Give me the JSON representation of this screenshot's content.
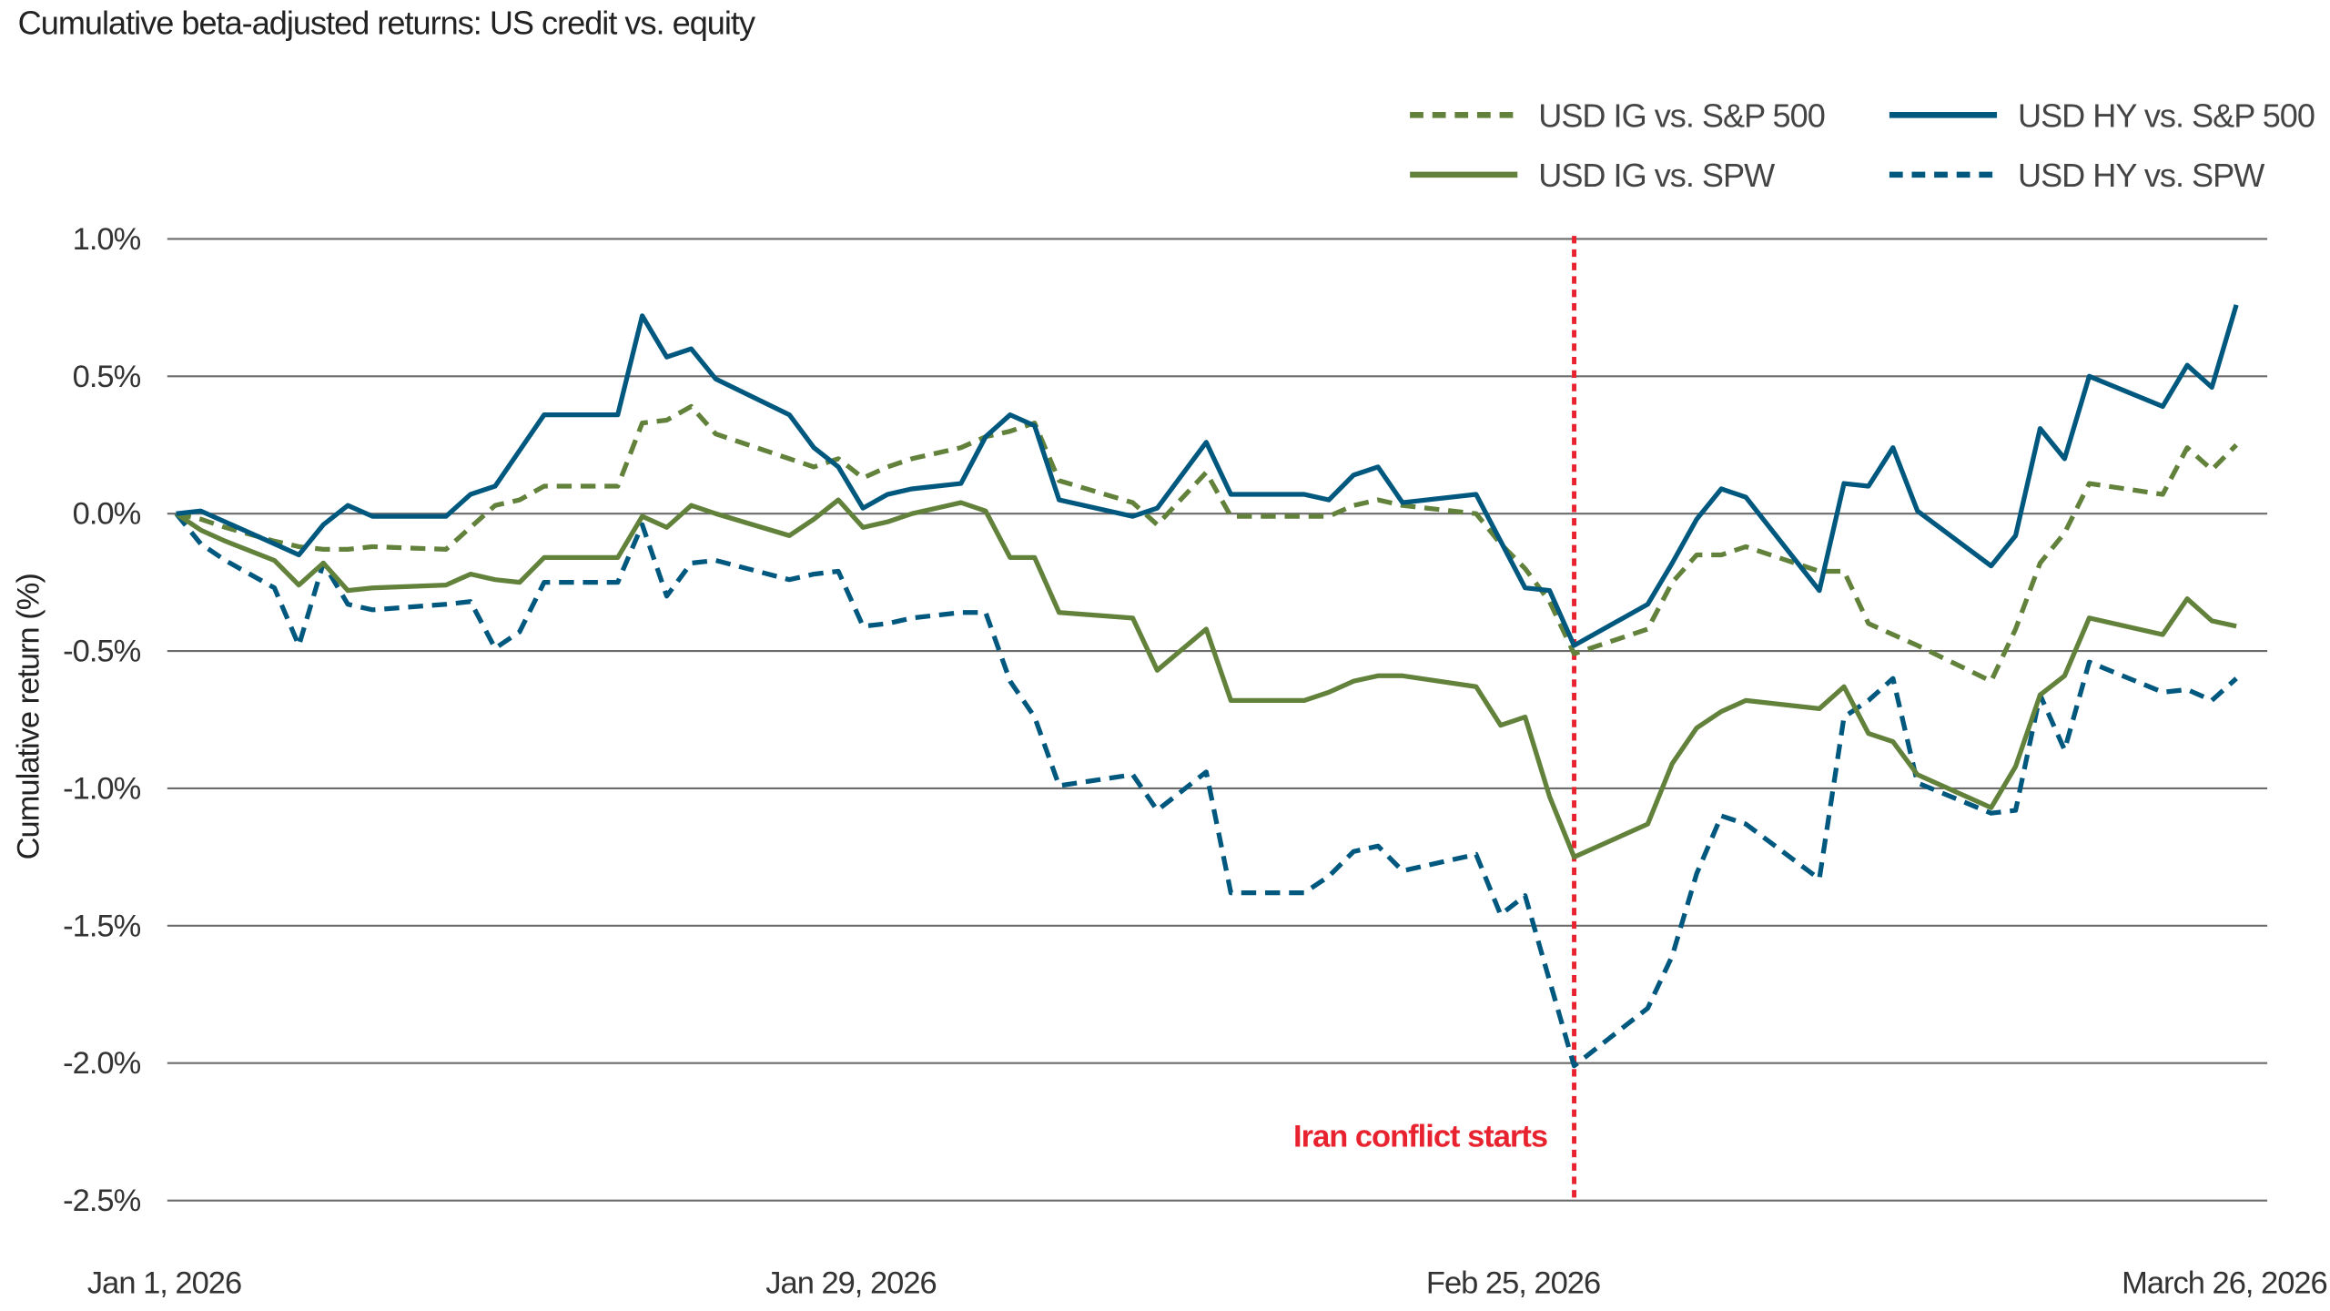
{
  "chart_data": {
    "type": "line",
    "title": "Cumulative beta-adjusted returns: US credit vs. equity",
    "xlabel": "",
    "ylabel": "Cumulative return (%)",
    "ylim": [
      -2.5,
      1.0
    ],
    "yticks": [
      1.0,
      0.5,
      0.0,
      -0.5,
      -1.0,
      -1.5,
      -2.0,
      -2.5
    ],
    "ytick_labels": [
      "1.0%",
      "0.5%",
      "0.0%",
      "-0.5%",
      "-1.0%",
      "-1.5%",
      "-2.0%",
      "-2.5%"
    ],
    "xlim": [
      "2026-01-01",
      "2026-03-26"
    ],
    "xticks": [
      "2026-01-01",
      "2026-01-29",
      "2026-02-25",
      "2026-03-26"
    ],
    "xtick_labels": [
      "Jan 1, 2026",
      "Jan 29, 2026",
      "Feb 25, 2026",
      "March 26, 2026"
    ],
    "grid": "horizontal",
    "legend_position": "top-right",
    "x": [
      "2026-01-01",
      "2026-01-02",
      "2026-01-03",
      "2026-01-05",
      "2026-01-06",
      "2026-01-07",
      "2026-01-08",
      "2026-01-09",
      "2026-01-12",
      "2026-01-13",
      "2026-01-14",
      "2026-01-15",
      "2026-01-16",
      "2026-01-19",
      "2026-01-20",
      "2026-01-21",
      "2026-01-22",
      "2026-01-23",
      "2026-01-26",
      "2026-01-27",
      "2026-01-28",
      "2026-01-29",
      "2026-01-30",
      "2026-01-31",
      "2026-02-02",
      "2026-02-03",
      "2026-02-04",
      "2026-02-05",
      "2026-02-06",
      "2026-02-09",
      "2026-02-10",
      "2026-02-12",
      "2026-02-13",
      "2026-02-16",
      "2026-02-17",
      "2026-02-18",
      "2026-02-19",
      "2026-02-20",
      "2026-02-23",
      "2026-02-24",
      "2026-02-25",
      "2026-02-26",
      "2026-02-27",
      "2026-03-02",
      "2026-03-03",
      "2026-03-04",
      "2026-03-05",
      "2026-03-06",
      "2026-03-09",
      "2026-03-10",
      "2026-03-11",
      "2026-03-12",
      "2026-03-13",
      "2026-03-16",
      "2026-03-17",
      "2026-03-18",
      "2026-03-19",
      "2026-03-20",
      "2026-03-23",
      "2026-03-24",
      "2026-03-25",
      "2026-03-26"
    ],
    "series": [
      {
        "name": "USD IG vs. S&P 500",
        "color": "#62813b",
        "dash": "dashed",
        "values": [
          0,
          -0.02,
          -0.05,
          -0.1,
          -0.12,
          -0.13,
          -0.13,
          -0.12,
          -0.13,
          -0.05,
          0.03,
          0.05,
          0.1,
          0.1,
          0.33,
          0.34,
          0.39,
          0.29,
          0.2,
          0.17,
          0.2,
          0.13,
          0.17,
          0.2,
          0.24,
          0.28,
          0.3,
          0.33,
          0.12,
          0.04,
          -0.04,
          0.15,
          -0.01,
          -0.01,
          -0.01,
          0.03,
          0.05,
          0.03,
          0,
          -0.11,
          -0.2,
          -0.32,
          -0.51,
          -0.42,
          -0.25,
          -0.15,
          -0.15,
          -0.12,
          -0.21,
          -0.21,
          -0.4,
          -0.44,
          -0.48,
          -0.61,
          -0.42,
          -0.18,
          -0.07,
          0.11,
          0.07,
          0.24,
          0.16,
          0.25
        ]
      },
      {
        "name": "USD HY vs. S&P 500",
        "color": "#00587f",
        "dash": "solid",
        "values": [
          0,
          0.01,
          -0.03,
          -0.11,
          -0.15,
          -0.04,
          0.03,
          -0.01,
          -0.01,
          0.07,
          0.1,
          0.23,
          0.36,
          0.36,
          0.72,
          0.57,
          0.6,
          0.49,
          0.36,
          0.24,
          0.17,
          0.02,
          0.07,
          0.09,
          0.11,
          0.28,
          0.36,
          0.32,
          0.05,
          -0.01,
          0.02,
          0.26,
          0.07,
          0.07,
          0.05,
          0.14,
          0.17,
          0.04,
          0.07,
          -0.1,
          -0.27,
          -0.28,
          -0.48,
          -0.33,
          -0.18,
          -0.02,
          0.09,
          0.06,
          -0.28,
          0.11,
          0.1,
          0.24,
          0.01,
          -0.19,
          -0.08,
          0.31,
          0.2,
          0.5,
          0.39,
          0.54,
          0.46,
          0.76
        ]
      },
      {
        "name": "USD IG vs. SPW",
        "color": "#62813b",
        "dash": "solid",
        "values": [
          0,
          -0.06,
          -0.1,
          -0.17,
          -0.26,
          -0.18,
          -0.28,
          -0.27,
          -0.26,
          -0.22,
          -0.24,
          -0.25,
          -0.16,
          -0.16,
          -0.01,
          -0.05,
          0.03,
          0,
          -0.08,
          -0.02,
          0.05,
          -0.05,
          -0.03,
          0,
          0.04,
          0.01,
          -0.16,
          -0.16,
          -0.36,
          -0.38,
          -0.57,
          -0.42,
          -0.68,
          -0.68,
          -0.65,
          -0.61,
          -0.59,
          -0.59,
          -0.63,
          -0.77,
          -0.74,
          -1.03,
          -1.25,
          -1.13,
          -0.91,
          -0.78,
          -0.72,
          -0.68,
          -0.71,
          -0.63,
          -0.8,
          -0.83,
          -0.95,
          -1.07,
          -0.92,
          -0.66,
          -0.59,
          -0.38,
          -0.44,
          -0.31,
          -0.39,
          -0.41
        ]
      },
      {
        "name": "USD HY vs. SPW",
        "color": "#00587f",
        "dash": "dashed",
        "values": [
          0,
          -0.11,
          -0.17,
          -0.27,
          -0.48,
          -0.18,
          -0.33,
          -0.35,
          -0.33,
          -0.32,
          -0.49,
          -0.43,
          -0.25,
          -0.25,
          -0.04,
          -0.3,
          -0.18,
          -0.17,
          -0.24,
          -0.22,
          -0.21,
          -0.41,
          -0.4,
          -0.38,
          -0.36,
          -0.36,
          -0.61,
          -0.74,
          -0.99,
          -0.95,
          -1.08,
          -0.94,
          -1.38,
          -1.38,
          -1.32,
          -1.23,
          -1.21,
          -1.3,
          -1.24,
          -1.46,
          -1.39,
          -1.7,
          -2.01,
          -1.8,
          -1.61,
          -1.31,
          -1.1,
          -1.13,
          -1.33,
          -0.74,
          -0.68,
          -0.6,
          -0.98,
          -1.09,
          -1.08,
          -0.66,
          -0.86,
          -0.54,
          -0.65,
          -0.64,
          -0.68,
          -0.6
        ]
      }
    ],
    "annotations": [
      {
        "text": "Iran conflict starts",
        "x": "2026-02-27",
        "color": "#e8232f",
        "style": "dotted vertical line"
      }
    ]
  }
}
